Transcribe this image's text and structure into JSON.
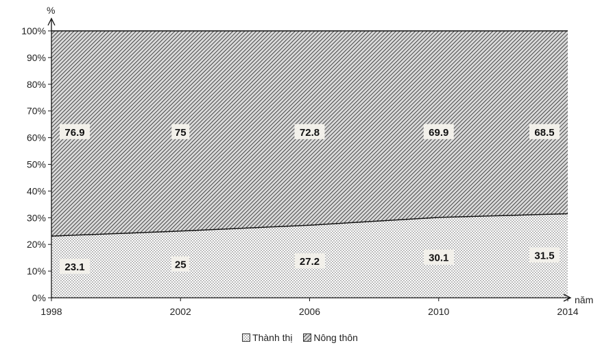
{
  "chart_data": {
    "type": "area",
    "stacked": "percent",
    "x": [
      "1998",
      "2002",
      "2006",
      "2010",
      "2014"
    ],
    "series": [
      {
        "name": "Thành thị",
        "values": [
          23.1,
          25,
          27.2,
          30.1,
          31.5
        ],
        "pattern": "dots"
      },
      {
        "name": "Nông thôn",
        "values": [
          76.9,
          75,
          72.8,
          69.9,
          68.5
        ],
        "pattern": "diagonal-hatch"
      }
    ],
    "ylabel": "%",
    "xlabel": "năm",
    "ylim": [
      0,
      100
    ],
    "y_ticks": [
      "0%",
      "10%",
      "20%",
      "30%",
      "40%",
      "50%",
      "60%",
      "70%",
      "80%",
      "90%",
      "100%"
    ],
    "legend_position": "bottom",
    "grid": false
  }
}
